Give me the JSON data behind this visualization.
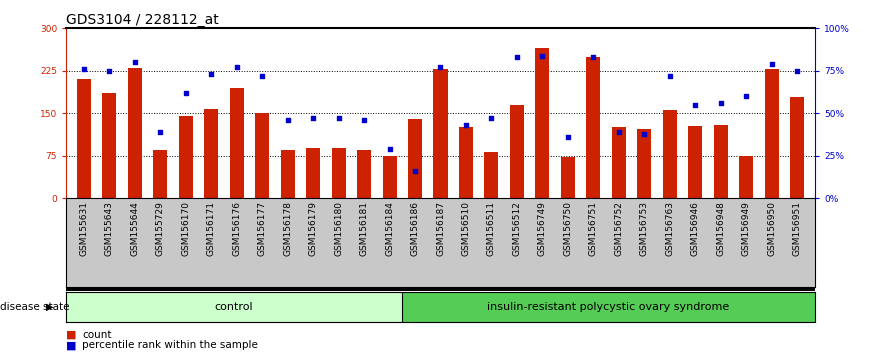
{
  "title": "GDS3104 / 228112_at",
  "samples": [
    "GSM155631",
    "GSM155643",
    "GSM155644",
    "GSM155729",
    "GSM156170",
    "GSM156171",
    "GSM156176",
    "GSM156177",
    "GSM156178",
    "GSM156179",
    "GSM156180",
    "GSM156181",
    "GSM156184",
    "GSM156186",
    "GSM156187",
    "GSM156510",
    "GSM156511",
    "GSM156512",
    "GSM156749",
    "GSM156750",
    "GSM156751",
    "GSM156752",
    "GSM156753",
    "GSM156763",
    "GSM156946",
    "GSM156948",
    "GSM156949",
    "GSM156950",
    "GSM156951"
  ],
  "bar_values": [
    210,
    185,
    230,
    85,
    145,
    158,
    195,
    150,
    85,
    88,
    88,
    85,
    75,
    140,
    228,
    125,
    82,
    165,
    265,
    72,
    250,
    125,
    122,
    155,
    128,
    130,
    75,
    228,
    178
  ],
  "dot_values_pct": [
    76,
    75,
    80,
    39,
    62,
    73,
    77,
    72,
    46,
    47,
    47,
    46,
    29,
    16,
    77,
    43,
    47,
    83,
    84,
    36,
    83,
    39,
    38,
    72,
    55,
    56,
    60,
    79,
    75
  ],
  "group_labels": [
    "control",
    "insulin-resistant polycystic ovary syndrome"
  ],
  "group_sizes": [
    13,
    16
  ],
  "control_color": "#ccffcc",
  "disease_color": "#55cc55",
  "bar_color": "#cc2200",
  "dot_color": "#0000cc",
  "ylim_left": [
    0,
    300
  ],
  "ylim_right": [
    0,
    100
  ],
  "yticks_left": [
    0,
    75,
    150,
    225,
    300
  ],
  "yticks_right": [
    0,
    25,
    50,
    75,
    100
  ],
  "ytick_labels_left": [
    "0",
    "75",
    "150",
    "225",
    "300"
  ],
  "ytick_labels_right": [
    "0%",
    "25%",
    "50%",
    "75%",
    "100%"
  ],
  "hlines": [
    75,
    150,
    225
  ],
  "title_fontsize": 10,
  "tick_fontsize": 6.5,
  "legend_items": [
    "count",
    "percentile rank within the sample"
  ],
  "disease_state_label": "disease state"
}
